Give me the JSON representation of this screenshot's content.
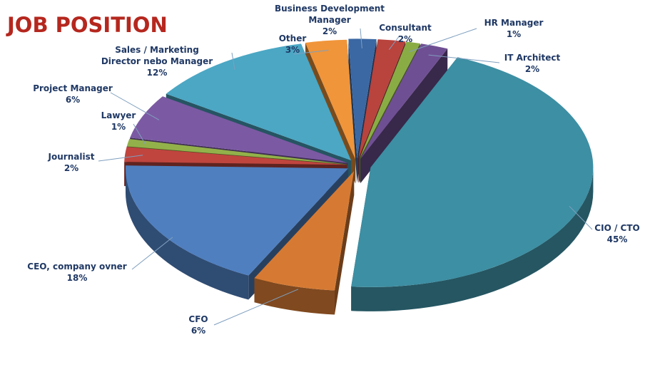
{
  "chart_data": {
    "type": "pie",
    "title": "JOB POSITION",
    "title_color": "#b5271e",
    "label_color": "#1f3864",
    "style": "3d-exploded",
    "slices": [
      {
        "name": "CIO / CTO",
        "label_lines": [
          "CIO  /  CTO"
        ],
        "percent_label": "45%",
        "value": 45,
        "color": "#3d8fa3"
      },
      {
        "name": "CFO",
        "label_lines": [
          "CFO"
        ],
        "percent_label": "6%",
        "value": 6,
        "color": "#d67a33"
      },
      {
        "name": "CEO, company ovner",
        "label_lines": [
          "CEO,  company  ovner"
        ],
        "percent_label": "18%",
        "value": 18,
        "color": "#4f7fbf"
      },
      {
        "name": "Journalist",
        "label_lines": [
          "Journalist"
        ],
        "percent_label": "2%",
        "value": 2,
        "color": "#c0453f"
      },
      {
        "name": "Lawyer",
        "label_lines": [
          "Lawyer"
        ],
        "percent_label": "1%",
        "value": 1,
        "color": "#93b14a"
      },
      {
        "name": "Project Manager",
        "label_lines": [
          "Project  Manager"
        ],
        "percent_label": "6%",
        "value": 6,
        "color": "#7b5aa3"
      },
      {
        "name": "Sales / Marketing Director nebo Manager",
        "label_lines": [
          "Sales  /  Marketing",
          "Director  nebo  Manager"
        ],
        "percent_label": "12%",
        "value": 12,
        "color": "#4ba7c4"
      },
      {
        "name": "Other",
        "label_lines": [
          "Other"
        ],
        "percent_label": "3%",
        "value": 3,
        "color": "#f0953a"
      },
      {
        "name": "Business Development Manager",
        "label_lines": [
          "Business  Development",
          "Manager"
        ],
        "percent_label": "2%",
        "value": 2,
        "color": "#3b68a3"
      },
      {
        "name": "Consultant",
        "label_lines": [
          "Consultant"
        ],
        "percent_label": "2%",
        "value": 2,
        "color": "#b9433d"
      },
      {
        "name": "HR Manager",
        "label_lines": [
          "HR  Manager"
        ],
        "percent_label": "1%",
        "value": 1,
        "color": "#8aac45"
      },
      {
        "name": "IT Architect",
        "label_lines": [
          "IT  Architect"
        ],
        "percent_label": "2%",
        "value": 2,
        "color": "#6f4f93"
      }
    ]
  }
}
